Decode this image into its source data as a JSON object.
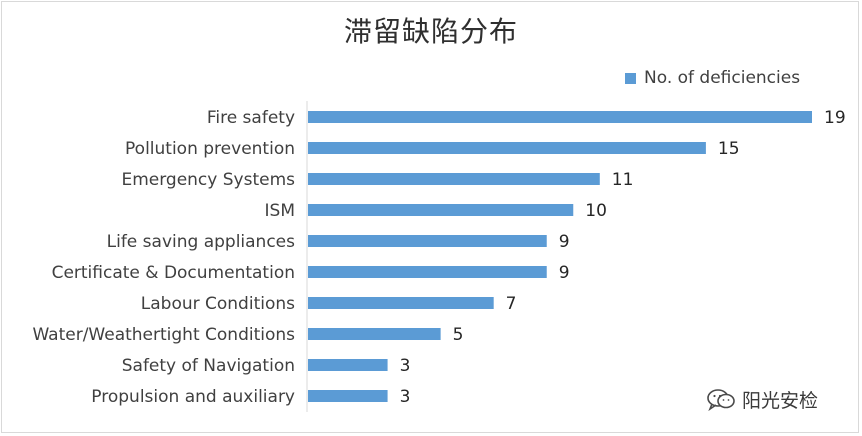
{
  "chart_data": {
    "type": "bar",
    "orientation": "horizontal",
    "title": "滞留缺陷分布",
    "categories": [
      "Fire safety",
      "Pollution prevention",
      "Emergency Systems",
      "ISM",
      "Life saving appliances",
      "Certificate & Documentation",
      "Labour Conditions",
      "Water/Weathertight Conditions",
      "Safety of Navigation",
      "Propulsion and auxiliary"
    ],
    "series": [
      {
        "name": "No. of deficiencies",
        "values": [
          19,
          15,
          11,
          10,
          9,
          9,
          7,
          5,
          3,
          3
        ]
      }
    ],
    "xlim": [
      0,
      19
    ],
    "grid": false,
    "legend_position": "top-right",
    "data_labels": true,
    "colors": {
      "bar": "#5b9bd5",
      "axis": "#d9d9d9",
      "text": "#404040"
    }
  },
  "watermark": {
    "text": "阳光安检",
    "icon": "wechat-icon"
  }
}
